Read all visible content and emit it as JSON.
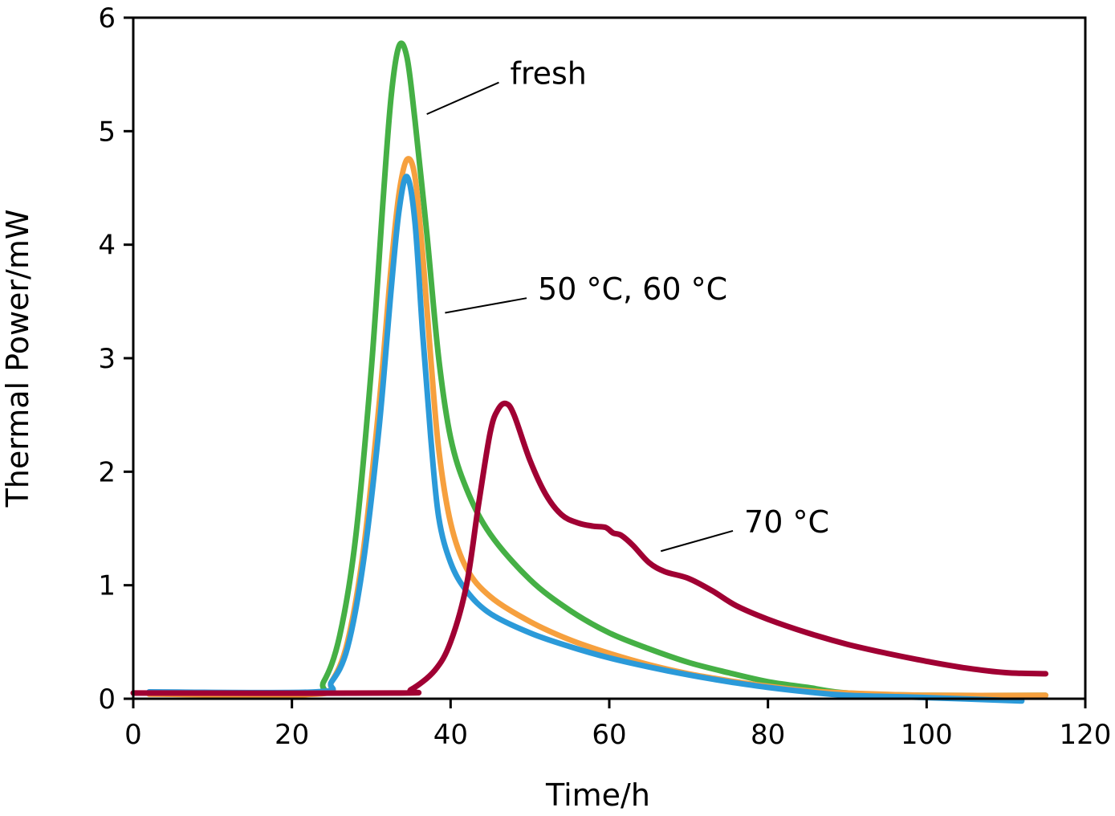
{
  "chart_data": {
    "type": "line",
    "title": "",
    "xlabel": "Time/h",
    "ylabel": "Thermal Power/mW",
    "xlim": [
      0,
      120
    ],
    "ylim": [
      0,
      6
    ],
    "xticks": [
      "0",
      "20",
      "40",
      "60",
      "80",
      "100",
      "120"
    ],
    "yticks": [
      "0",
      "1",
      "2",
      "3",
      "4",
      "5",
      "6"
    ],
    "grid": false,
    "legend": "none",
    "series": [
      {
        "color": "#45b045",
        "points": [
          [
            2,
            0.05
          ],
          [
            22,
            0.05
          ],
          [
            24,
            0.15
          ],
          [
            26,
            0.55
          ],
          [
            28,
            1.4
          ],
          [
            30,
            2.9
          ],
          [
            31.5,
            4.4
          ],
          [
            32.5,
            5.3
          ],
          [
            33.5,
            5.75
          ],
          [
            34.5,
            5.65
          ],
          [
            35.5,
            5.1
          ],
          [
            37,
            4.1
          ],
          [
            38.5,
            3.0
          ],
          [
            40,
            2.3
          ],
          [
            42,
            1.85
          ],
          [
            45,
            1.45
          ],
          [
            50,
            1.05
          ],
          [
            55,
            0.78
          ],
          [
            60,
            0.58
          ],
          [
            65,
            0.44
          ],
          [
            70,
            0.32
          ],
          [
            75,
            0.23
          ],
          [
            80,
            0.15
          ],
          [
            85,
            0.1
          ],
          [
            90,
            0.05
          ],
          [
            100,
            0.03
          ],
          [
            115,
            0.03
          ]
        ]
      },
      {
        "color": "#f6a03e",
        "points": [
          [
            2,
            0.04
          ],
          [
            23,
            0.04
          ],
          [
            25,
            0.15
          ],
          [
            27,
            0.5
          ],
          [
            29,
            1.3
          ],
          [
            31,
            2.6
          ],
          [
            32.5,
            3.8
          ],
          [
            33.5,
            4.45
          ],
          [
            34.5,
            4.75
          ],
          [
            35.5,
            4.6
          ],
          [
            36.5,
            3.9
          ],
          [
            37.5,
            3.0
          ],
          [
            38.5,
            2.2
          ],
          [
            40,
            1.55
          ],
          [
            42,
            1.15
          ],
          [
            45,
            0.9
          ],
          [
            50,
            0.68
          ],
          [
            55,
            0.52
          ],
          [
            60,
            0.4
          ],
          [
            65,
            0.3
          ],
          [
            70,
            0.22
          ],
          [
            75,
            0.16
          ],
          [
            80,
            0.11
          ],
          [
            85,
            0.07
          ],
          [
            90,
            0.05
          ],
          [
            100,
            0.03
          ],
          [
            115,
            0.03
          ]
        ]
      },
      {
        "color": "#2b9ad9",
        "points": [
          [
            2,
            0.06
          ],
          [
            23,
            0.06
          ],
          [
            25,
            0.15
          ],
          [
            27,
            0.45
          ],
          [
            29,
            1.2
          ],
          [
            31,
            2.4
          ],
          [
            32.5,
            3.6
          ],
          [
            33.5,
            4.3
          ],
          [
            34.5,
            4.6
          ],
          [
            35.5,
            4.2
          ],
          [
            36.5,
            3.2
          ],
          [
            37.5,
            2.3
          ],
          [
            38.5,
            1.6
          ],
          [
            40,
            1.2
          ],
          [
            42,
            0.95
          ],
          [
            45,
            0.75
          ],
          [
            50,
            0.58
          ],
          [
            55,
            0.46
          ],
          [
            60,
            0.36
          ],
          [
            65,
            0.28
          ],
          [
            70,
            0.21
          ],
          [
            75,
            0.15
          ],
          [
            80,
            0.1
          ],
          [
            85,
            0.06
          ],
          [
            90,
            0.03
          ],
          [
            100,
            0.01
          ],
          [
            112,
            -0.02
          ]
        ]
      },
      {
        "color": "#a00033",
        "points": [
          [
            0,
            0.05
          ],
          [
            33,
            0.05
          ],
          [
            35,
            0.08
          ],
          [
            38,
            0.25
          ],
          [
            40,
            0.5
          ],
          [
            42,
            1.0
          ],
          [
            43.5,
            1.7
          ],
          [
            45,
            2.35
          ],
          [
            46,
            2.55
          ],
          [
            47,
            2.6
          ],
          [
            48,
            2.5
          ],
          [
            50,
            2.1
          ],
          [
            52,
            1.8
          ],
          [
            54,
            1.62
          ],
          [
            56,
            1.55
          ],
          [
            58,
            1.52
          ],
          [
            59.5,
            1.51
          ],
          [
            60.5,
            1.46
          ],
          [
            61.5,
            1.44
          ],
          [
            63,
            1.35
          ],
          [
            65,
            1.2
          ],
          [
            67,
            1.12
          ],
          [
            70,
            1.06
          ],
          [
            73,
            0.95
          ],
          [
            76,
            0.82
          ],
          [
            80,
            0.7
          ],
          [
            85,
            0.58
          ],
          [
            90,
            0.48
          ],
          [
            95,
            0.4
          ],
          [
            100,
            0.33
          ],
          [
            105,
            0.27
          ],
          [
            110,
            0.23
          ],
          [
            115,
            0.22
          ]
        ]
      }
    ],
    "annotations": [
      {
        "text": "fresh",
        "x": 47.5,
        "y": 5.5,
        "pointer_to": [
          37,
          5.15
        ]
      },
      {
        "text": "50 °C, 60 °C",
        "x": 51,
        "y": 3.6,
        "pointer_to": [
          39.3,
          3.4
        ]
      },
      {
        "text": "70 °C",
        "x": 77,
        "y": 1.55,
        "pointer_to": [
          66.5,
          1.3
        ]
      }
    ]
  }
}
